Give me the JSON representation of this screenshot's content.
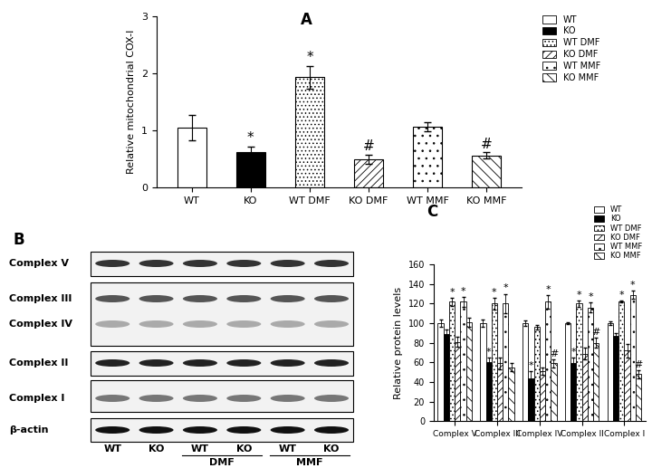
{
  "chart_data": [
    {
      "label": "A",
      "type": "bar",
      "y_label": "Relative mitochondrial COX-I",
      "categories": [
        "WT",
        "KO",
        "WT DMF",
        "KO DMF",
        "WT MMF",
        "KO MMF"
      ],
      "values": [
        1.05,
        0.62,
        1.93,
        0.49,
        1.06,
        0.56
      ],
      "errors": [
        0.22,
        0.1,
        0.2,
        0.08,
        0.08,
        0.05
      ],
      "annotations": [
        null,
        "*",
        "*",
        "#",
        null,
        "#"
      ],
      "colors": [
        "#ffffff",
        "#000000",
        "#ffffff",
        "#ffffff",
        "#ffffff",
        "#ffffff"
      ],
      "ylim": [
        0,
        3
      ],
      "yticks": [
        0,
        1,
        2,
        3
      ],
      "legend": "upper left"
    },
    {
      "label": "C",
      "type": "bar",
      "y_label": "Relative protein levels",
      "categories": [
        "Complex V",
        "Complex III",
        "Complex IV",
        "Complex II",
        "Complex I"
      ],
      "series": [
        {
          "name": "WT",
          "color": "#ffffff",
          "values": [
            100,
            100,
            100,
            100,
            100
          ],
          "errors": [
            4,
            4,
            3,
            1,
            2
          ],
          "annotations": [
            null,
            null,
            null,
            null,
            null
          ]
        },
        {
          "name": "KO",
          "color": "#000000",
          "values": [
            89,
            60,
            44,
            59,
            87
          ],
          "errors": [
            5,
            5,
            7,
            6,
            3
          ],
          "annotations": [
            null,
            "*",
            "*",
            "*",
            null
          ]
        },
        {
          "name": "WT DMF",
          "color": "#ffffff",
          "values": [
            122,
            120,
            96,
            120,
            122
          ],
          "errors": [
            4,
            6,
            2,
            3,
            1
          ],
          "annotations": [
            "*",
            "*",
            null,
            "*",
            "*"
          ]
        },
        {
          "name": "KO DMF",
          "color": "#ffffff",
          "values": [
            81,
            59,
            51,
            69,
            72
          ],
          "errors": [
            5,
            6,
            4,
            6,
            7
          ],
          "annotations": [
            null,
            null,
            null,
            null,
            null
          ]
        },
        {
          "name": "WT MMF",
          "color": "#ffffff",
          "values": [
            122,
            120,
            122,
            116,
            129
          ],
          "errors": [
            5,
            10,
            7,
            5,
            4
          ],
          "annotations": [
            "*",
            "*",
            "*",
            "*",
            "*"
          ]
        },
        {
          "name": "KO MMF",
          "color": "#ffffff",
          "values": [
            101,
            55,
            59,
            80,
            48
          ],
          "errors": [
            5,
            4,
            4,
            5,
            4
          ],
          "annotations": [
            null,
            null,
            "#",
            "#",
            "#"
          ]
        }
      ],
      "ylim": [
        0,
        160
      ],
      "yticks": [
        0,
        20,
        40,
        60,
        80,
        100,
        120,
        140,
        160
      ],
      "legend": "upper right"
    }
  ],
  "blot": {
    "label": "B",
    "rows": [
      "Complex V",
      "Complex III",
      "Complex IV",
      "Complex II",
      "Complex I",
      "β-actin"
    ],
    "lanes": [
      "WT",
      "KO",
      "WT",
      "KO",
      "WT",
      "KO"
    ],
    "groups": [
      "DMF",
      "MMF"
    ]
  }
}
